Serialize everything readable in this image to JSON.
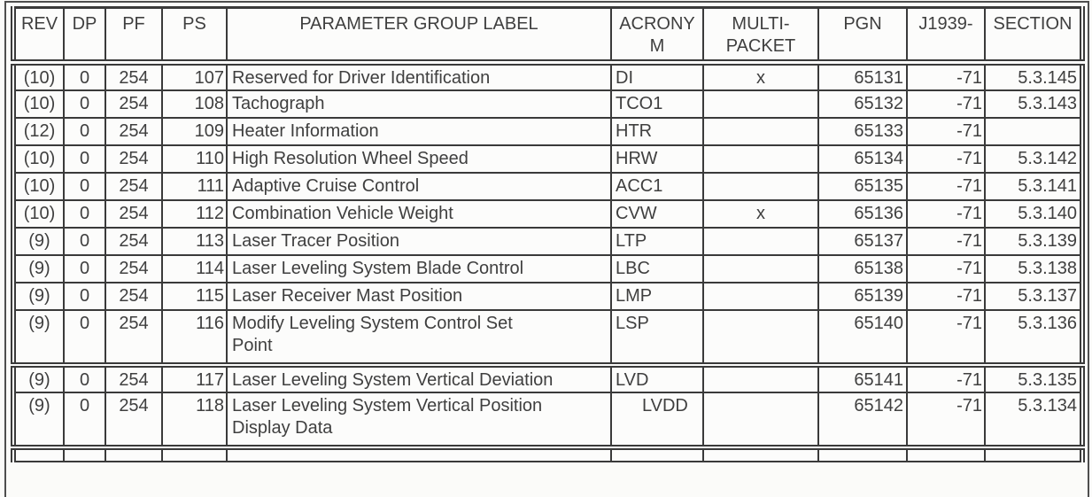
{
  "colors": {
    "paper": "#fbfbf9",
    "ink": "#3f3f3f",
    "line": "#3a3a3a"
  },
  "table": {
    "columns": [
      {
        "key": "rev",
        "label": "REV"
      },
      {
        "key": "dp",
        "label": "DP"
      },
      {
        "key": "pf",
        "label": "PF"
      },
      {
        "key": "ps",
        "label": "PS"
      },
      {
        "key": "label",
        "label": "PARAMETER GROUP LABEL"
      },
      {
        "key": "acronym",
        "label": "ACRONY\nM"
      },
      {
        "key": "multipacket",
        "label": "MULTI-\nPACKET"
      },
      {
        "key": "pgn",
        "label": "PGN"
      },
      {
        "key": "j1939",
        "label": "J1939-"
      },
      {
        "key": "section",
        "label": "SECTION"
      }
    ],
    "rows": [
      {
        "rev": "(10)",
        "dp": "0",
        "pf": "254",
        "ps": "107",
        "label": "Reserved for Driver Identification",
        "acronym": "DI",
        "multipacket": "x",
        "pgn": "65131",
        "j1939": "-71",
        "section": "5.3.145"
      },
      {
        "rev": "(10)",
        "dp": "0",
        "pf": "254",
        "ps": "108",
        "label": "Tachograph",
        "acronym": "TCO1",
        "multipacket": "",
        "pgn": "65132",
        "j1939": "-71",
        "section": "5.3.143"
      },
      {
        "rev": "(12)",
        "dp": "0",
        "pf": "254",
        "ps": "109",
        "label": "Heater Information",
        "acronym": "HTR",
        "multipacket": "",
        "pgn": "65133",
        "j1939": "-71",
        "section": ""
      },
      {
        "rev": "(10)",
        "dp": "0",
        "pf": "254",
        "ps": "110",
        "label": "High Resolution Wheel Speed",
        "acronym": "HRW",
        "multipacket": "",
        "pgn": "65134",
        "j1939": "-71",
        "section": "5.3.142"
      },
      {
        "rev": "(10)",
        "dp": "0",
        "pf": "254",
        "ps": "111",
        "label": "Adaptive Cruise Control",
        "acronym": "ACC1",
        "multipacket": "",
        "pgn": "65135",
        "j1939": "-71",
        "section": "5.3.141"
      },
      {
        "rev": "(10)",
        "dp": "0",
        "pf": "254",
        "ps": "112",
        "label": "Combination Vehicle Weight",
        "acronym": "CVW",
        "multipacket": "x",
        "pgn": "65136",
        "j1939": "-71",
        "section": "5.3.140"
      },
      {
        "rev": "(9)",
        "dp": "0",
        "pf": "254",
        "ps": "113",
        "label": "Laser Tracer Position",
        "acronym": "LTP",
        "multipacket": "",
        "pgn": "65137",
        "j1939": "-71",
        "section": "5.3.139"
      },
      {
        "rev": "(9)",
        "dp": "0",
        "pf": "254",
        "ps": "114",
        "label": "Laser Leveling System Blade Control",
        "acronym": "LBC",
        "multipacket": "",
        "pgn": "65138",
        "j1939": "-71",
        "section": "5.3.138"
      },
      {
        "rev": "(9)",
        "dp": "0",
        "pf": "254",
        "ps": "115",
        "label": "Laser Receiver Mast Position",
        "acronym": "LMP",
        "multipacket": "",
        "pgn": "65139",
        "j1939": "-71",
        "section": "5.3.137"
      },
      {
        "rev": "(9)",
        "dp": "0",
        "pf": "254",
        "ps": "116",
        "label": "Modify Leveling System Control Set\nPoint",
        "acronym": "LSP",
        "multipacket": "",
        "pgn": "65140",
        "j1939": "-71",
        "section": "5.3.136"
      },
      {
        "rev": "(9)",
        "dp": "0",
        "pf": "254",
        "ps": "117",
        "label": "Laser Leveling System Vertical Deviation",
        "acronym": "LVD",
        "multipacket": "",
        "pgn": "65141",
        "j1939": "-71",
        "section": "5.3.135"
      },
      {
        "rev": "(9)",
        "dp": "0",
        "pf": "254",
        "ps": "118",
        "label": "Laser Leveling System Vertical Position\nDisplay Data",
        "acronym": "LVDD",
        "multipacket": "",
        "pgn": "65142",
        "j1939": "-71",
        "section": "5.3.134"
      }
    ]
  }
}
